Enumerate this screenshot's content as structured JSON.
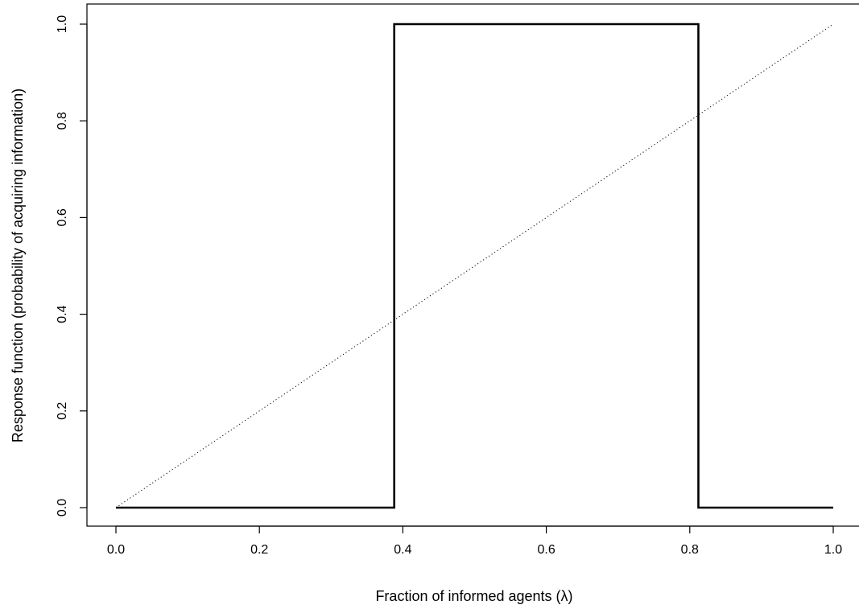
{
  "chart_data": {
    "type": "line",
    "title": "",
    "xlabel": "Fraction of informed agents  (λ)",
    "ylabel": "Response function (probability of acquiring information)",
    "xlim": [
      -0.04,
      1.04
    ],
    "ylim": [
      -0.04,
      1.04
    ],
    "x_ticks": [
      0.0,
      0.2,
      0.4,
      0.6,
      0.8,
      1.0
    ],
    "y_ticks": [
      0.0,
      0.2,
      0.4,
      0.6,
      0.8,
      1.0
    ],
    "x_tick_labels": [
      "0.0",
      "0.2",
      "0.4",
      "0.6",
      "0.8",
      "1.0"
    ],
    "y_tick_labels": [
      "0.0",
      "0.2",
      "0.4",
      "0.6",
      "0.8",
      "1.0"
    ],
    "grid": false,
    "series": [
      {
        "style": "solid",
        "color": "#000000",
        "points": [
          [
            0.0,
            0.0
          ],
          [
            0.388,
            0.0
          ],
          [
            0.388,
            1.0
          ],
          [
            0.812,
            1.0
          ],
          [
            0.812,
            0.0
          ],
          [
            1.0,
            0.0
          ]
        ]
      },
      {
        "style": "dotted",
        "color": "#000000",
        "points": [
          [
            0.0,
            0.0
          ],
          [
            1.0,
            1.0
          ]
        ]
      }
    ]
  }
}
